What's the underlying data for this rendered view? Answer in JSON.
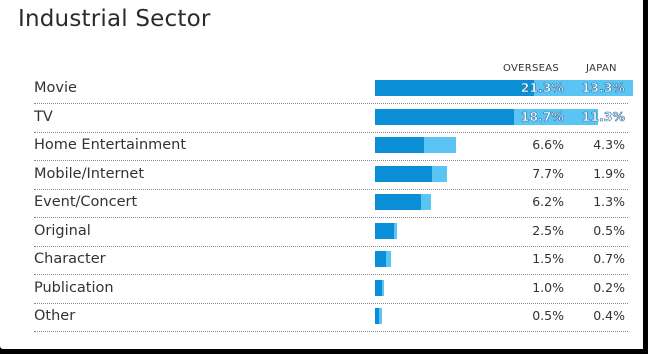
{
  "title": "Industrial Sector",
  "headers": {
    "overseas": "OVERSEAS",
    "japan": "JAPAN"
  },
  "colors": {
    "overseas": "#0a8fd6",
    "japan": "#5ac4f5"
  },
  "chart_data": {
    "type": "bar",
    "orientation": "horizontal",
    "stacked": true,
    "title": "Industrial Sector",
    "categories": [
      "Movie",
      "TV",
      "Home Entertainment",
      "Mobile/Internet",
      "Event/Concert",
      "Original",
      "Character",
      "Publication",
      "Other"
    ],
    "series": [
      {
        "name": "OVERSEAS",
        "values": [
          21.3,
          18.7,
          6.6,
          7.7,
          6.2,
          2.5,
          1.5,
          1.0,
          0.5
        ],
        "labels": [
          "21.3%",
          "18.7%",
          "6.6%",
          "7.7%",
          "6.2%",
          "2.5%",
          "1.5%",
          "1.0%",
          "0.5%"
        ]
      },
      {
        "name": "JAPAN",
        "values": [
          13.3,
          11.3,
          4.3,
          1.9,
          1.3,
          0.5,
          0.7,
          0.2,
          0.4
        ],
        "labels": [
          "13.3%",
          "11.3%",
          "4.3%",
          "1.9%",
          "1.3%",
          "0.5%",
          "0.7%",
          "0.2%",
          "0.4%"
        ]
      }
    ],
    "grid": false,
    "legend": "column headers top-right"
  }
}
